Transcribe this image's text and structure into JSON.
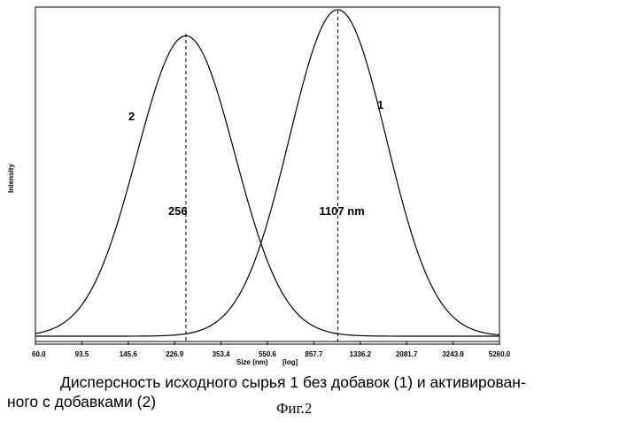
{
  "chart_data": {
    "type": "line",
    "x_scale": "log",
    "x_ticks": [
      "60.0",
      "93.5",
      "145.6",
      "226.9",
      "353.4",
      "550.6",
      "857.7",
      "1336.2",
      "2081.7",
      "3243.0",
      "5260.0"
    ],
    "xlabel": "Size (nm)",
    "xlabel_scale_note": "[log]",
    "ylabel": "Intensity",
    "xlim": [
      60,
      5260
    ],
    "ylim": [
      0,
      1
    ],
    "grid": false,
    "series": [
      {
        "name": "1",
        "peak_x": 1107,
        "peak_y": 1.0,
        "log_sigma": 0.203
      },
      {
        "name": "2",
        "peak_x": 256,
        "peak_y": 0.92,
        "log_sigma": 0.205
      }
    ],
    "annotations": [
      {
        "text": "256",
        "x": 256,
        "type": "dashed-vertical-line"
      },
      {
        "text": "1107 nm",
        "x": 1107,
        "type": "dashed-vertical-line"
      }
    ]
  },
  "caption": {
    "line1": "Дисперсность исходного сырья 1 без добавок (1) и активирован-",
    "line2": "ного с добавками (2)"
  },
  "figure_label": "Фиг.2"
}
